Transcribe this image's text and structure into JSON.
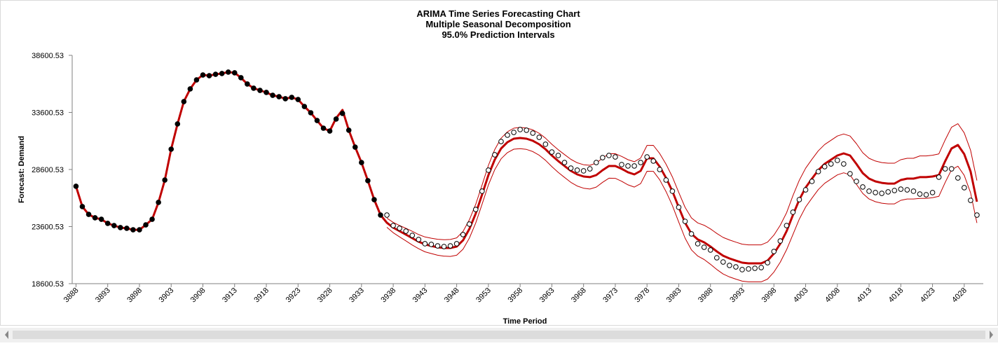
{
  "chart_data": {
    "type": "line",
    "title": "ARIMA Time Series Forecasting Chart",
    "subtitle": [
      "Multiple Seasonal Decomposition",
      "95.0% Prediction Intervals"
    ],
    "x_label": "Time Period",
    "y_label": "Forecast: Demand",
    "xlim": [
      3887.4,
      4031
    ],
    "ylim": [
      18600.53,
      38600.53
    ],
    "yticks": [
      18600.53,
      23600.53,
      28600.53,
      33600.53,
      38600.53
    ],
    "xticks": [
      3888,
      3893,
      3898,
      3903,
      3908,
      3913,
      3918,
      3923,
      3928,
      3933,
      3938,
      3943,
      3948,
      3953,
      3958,
      3963,
      3968,
      3973,
      3978,
      3983,
      3988,
      3993,
      3998,
      4003,
      4008,
      4013,
      4018,
      4023,
      4028
    ],
    "grid": false,
    "x": [
      3888,
      3889,
      3890,
      3891,
      3892,
      3893,
      3894,
      3895,
      3896,
      3897,
      3898,
      3899,
      3900,
      3901,
      3902,
      3903,
      3904,
      3905,
      3906,
      3907,
      3908,
      3909,
      3910,
      3911,
      3912,
      3913,
      3914,
      3915,
      3916,
      3917,
      3918,
      3919,
      3920,
      3921,
      3922,
      3923,
      3924,
      3925,
      3926,
      3927,
      3928,
      3929,
      3930,
      3931,
      3932,
      3933,
      3934,
      3935,
      3936,
      3937,
      3938,
      3939,
      3940,
      3941,
      3942,
      3943,
      3944,
      3945,
      3946,
      3947,
      3948,
      3949,
      3950,
      3951,
      3952,
      3953,
      3954,
      3955,
      3956,
      3957,
      3958,
      3959,
      3960,
      3961,
      3962,
      3963,
      3964,
      3965,
      3966,
      3967,
      3968,
      3969,
      3970,
      3971,
      3972,
      3973,
      3974,
      3975,
      3976,
      3977,
      3978,
      3979,
      3980,
      3981,
      3982,
      3983,
      3984,
      3985,
      3986,
      3987,
      3988,
      3989,
      3990,
      3991,
      3992,
      3993,
      3994,
      3995,
      3996,
      3997,
      3998,
      3999,
      4000,
      4001,
      4002,
      4003,
      4004,
      4005,
      4006,
      4007,
      4008,
      4009,
      4010,
      4011,
      4012,
      4013,
      4014,
      4015,
      4016,
      4017,
      4018,
      4019,
      4020,
      4021,
      4022,
      4023,
      4024,
      4025,
      4026,
      4027,
      4028,
      4029,
      4030
    ],
    "series": [
      {
        "color": "#c00000",
        "line_width": 1,
        "values": [
          null,
          null,
          null,
          null,
          null,
          null,
          null,
          null,
          null,
          null,
          null,
          null,
          null,
          null,
          null,
          null,
          null,
          null,
          null,
          null,
          null,
          null,
          null,
          null,
          null,
          null,
          null,
          null,
          null,
          null,
          null,
          null,
          null,
          null,
          null,
          null,
          null,
          null,
          null,
          null,
          null,
          null,
          null,
          null,
          null,
          null,
          null,
          null,
          null,
          23540,
          23060,
          22700,
          22350,
          21990,
          21660,
          21390,
          21240,
          21090,
          21010,
          20990,
          21090,
          21620,
          22590,
          23920,
          25550,
          27250,
          28580,
          29540,
          30080,
          30380,
          30430,
          30360,
          30170,
          29850,
          29410,
          28850,
          28350,
          27910,
          27470,
          27150,
          26960,
          26890,
          27060,
          27480,
          27840,
          27830,
          27570,
          27260,
          27060,
          27360,
          28450,
          28440,
          27700,
          26660,
          25450,
          23990,
          22590,
          21560,
          21020,
          20720,
          20300,
          19840,
          19450,
          19190,
          19000,
          18820,
          18760,
          18760,
          18760,
          19000,
          19620,
          20480,
          21580,
          22910,
          24260,
          25310,
          26100,
          26840,
          27390,
          27760,
          28130,
          28310,
          28130,
          27310,
          26510,
          26020,
          25780,
          25650,
          25590,
          25590,
          25900,
          26020,
          26020,
          26070,
          26070,
          26130,
          26250,
          27480,
          28580,
          28890,
          28090,
          26560,
          23920
        ]
      },
      {
        "color": "#c00000",
        "line_width": 1,
        "values": [
          null,
          null,
          null,
          null,
          null,
          null,
          null,
          null,
          null,
          null,
          null,
          null,
          null,
          null,
          null,
          null,
          null,
          null,
          null,
          null,
          null,
          null,
          null,
          null,
          null,
          null,
          null,
          null,
          null,
          null,
          null,
          null,
          null,
          null,
          null,
          null,
          null,
          null,
          null,
          null,
          null,
          null,
          null,
          null,
          null,
          null,
          null,
          null,
          null,
          24340,
          23960,
          23700,
          23450,
          23190,
          22900,
          22690,
          22580,
          22490,
          22450,
          22470,
          22610,
          23180,
          24190,
          25560,
          27230,
          28970,
          30340,
          31340,
          31900,
          32220,
          32290,
          32240,
          32070,
          31770,
          31350,
          30810,
          30330,
          29910,
          29490,
          29190,
          29020,
          28970,
          29160,
          29600,
          29980,
          29990,
          29750,
          29460,
          29280,
          29600,
          30710,
          30720,
          30000,
          29060,
          27950,
          26590,
          25290,
          24360,
          23920,
          23720,
          23400,
          23000,
          22650,
          22430,
          22240,
          22060,
          22000,
          22000,
          22000,
          22240,
          22860,
          23720,
          24820,
          26310,
          27660,
          28710,
          29500,
          30240,
          30790,
          31160,
          31530,
          31710,
          31530,
          30870,
          30070,
          29580,
          29340,
          29210,
          29150,
          29150,
          29460,
          29580,
          29580,
          29790,
          29790,
          29850,
          29970,
          31200,
          32300,
          32610,
          31810,
          30280,
          27640
        ]
      },
      {
        "color": "#c00000",
        "line_width": 3,
        "values": [
          27130,
          25350,
          24670,
          24370,
          24240,
          23880,
          23690,
          23510,
          23450,
          23320,
          23320,
          23750,
          24240,
          25720,
          27680,
          30380,
          32590,
          34550,
          35660,
          36450,
          36880,
          36820,
          36940,
          37010,
          37130,
          37070,
          36640,
          36090,
          35720,
          35530,
          35350,
          35100,
          34980,
          34800,
          34920,
          34730,
          34120,
          33570,
          32890,
          32220,
          31970,
          33100,
          33820,
          32040,
          30560,
          29210,
          27620,
          25960,
          24610,
          23940,
          23510,
          23200,
          22900,
          22590,
          22280,
          22040,
          21910,
          21790,
          21730,
          21730,
          21850,
          22400,
          23390,
          24740,
          26390,
          28110,
          29460,
          30440,
          30990,
          31300,
          31360,
          31300,
          31120,
          30810,
          30380,
          29830,
          29340,
          28910,
          28480,
          28170,
          27990,
          27930,
          28110,
          28540,
          28910,
          28910,
          28660,
          28360,
          28170,
          28480,
          29580,
          29580,
          28850,
          27860,
          26700,
          25290,
          23940,
          22960,
          22470,
          22220,
          21850,
          21420,
          21050,
          20810,
          20620,
          20440,
          20380,
          20380,
          20380,
          20620,
          21240,
          22100,
          23200,
          24610,
          25960,
          27010,
          27800,
          28540,
          29090,
          29460,
          29830,
          30010,
          29830,
          29090,
          28290,
          27800,
          27560,
          27430,
          27370,
          27370,
          27680,
          27800,
          27800,
          27930,
          27930,
          27990,
          28110,
          29340,
          30440,
          30750,
          29950,
          28420,
          25780
        ]
      },
      {
        "color": "#000000",
        "marker": "filled",
        "values": [
          27130,
          25350,
          24670,
          24370,
          24240,
          23880,
          23690,
          23510,
          23450,
          23320,
          23320,
          23750,
          24240,
          25720,
          27680,
          30380,
          32590,
          34550,
          35660,
          36450,
          36880,
          36820,
          36940,
          37010,
          37130,
          37070,
          36640,
          36090,
          35720,
          35530,
          35350,
          35100,
          34980,
          34800,
          34920,
          34730,
          34120,
          33570,
          32890,
          32220,
          31970,
          33020,
          33510,
          32040,
          30560,
          29210,
          27620,
          25960,
          24610,
          null,
          null,
          null,
          null,
          null,
          null,
          null,
          null,
          null,
          null,
          null,
          null,
          null,
          null,
          null,
          null,
          null,
          null,
          null,
          null,
          null,
          null,
          null,
          null,
          null,
          null,
          null,
          null,
          null,
          null,
          null,
          null,
          null,
          null,
          null,
          null,
          null,
          null,
          null,
          null,
          null,
          null,
          null,
          null,
          null,
          null,
          null,
          null,
          null,
          null,
          null,
          null,
          null,
          null,
          null,
          null,
          null,
          null,
          null,
          null,
          null,
          null,
          null,
          null,
          null,
          null,
          null,
          null,
          null,
          null,
          null,
          null,
          null,
          null,
          null,
          null,
          null,
          null,
          null,
          null,
          null,
          null,
          null,
          null,
          null,
          null,
          null,
          null,
          null,
          null,
          null,
          null,
          null,
          null
        ]
      },
      {
        "color": "#000000",
        "marker": "hollow",
        "values": [
          null,
          null,
          null,
          null,
          null,
          null,
          null,
          null,
          null,
          null,
          null,
          null,
          null,
          null,
          null,
          null,
          null,
          null,
          null,
          null,
          null,
          null,
          null,
          null,
          null,
          null,
          null,
          null,
          null,
          null,
          null,
          null,
          null,
          null,
          null,
          null,
          null,
          null,
          null,
          null,
          null,
          null,
          null,
          null,
          null,
          null,
          null,
          null,
          null,
          24610,
          23690,
          23450,
          23200,
          22830,
          22470,
          22100,
          22040,
          21910,
          21850,
          21910,
          22100,
          22900,
          23820,
          25100,
          26700,
          28540,
          29890,
          31050,
          31610,
          31850,
          32100,
          32040,
          31790,
          31420,
          30810,
          30130,
          29830,
          29210,
          28720,
          28540,
          28480,
          28660,
          29210,
          29640,
          29830,
          29700,
          29030,
          28910,
          28910,
          29210,
          29700,
          29340,
          28600,
          27680,
          26700,
          25290,
          24060,
          22960,
          22100,
          21790,
          21550,
          20870,
          20500,
          20200,
          20070,
          19830,
          19890,
          19950,
          20010,
          20440,
          21420,
          22340,
          23690,
          24860,
          25960,
          26820,
          27560,
          28420,
          28850,
          29090,
          29400,
          29090,
          28230,
          27560,
          27070,
          26700,
          26580,
          26510,
          26640,
          26760,
          26880,
          26820,
          26700,
          26450,
          26390,
          26580,
          27930,
          28660,
          28660,
          27860,
          27010,
          25900,
          24610
        ]
      }
    ]
  }
}
